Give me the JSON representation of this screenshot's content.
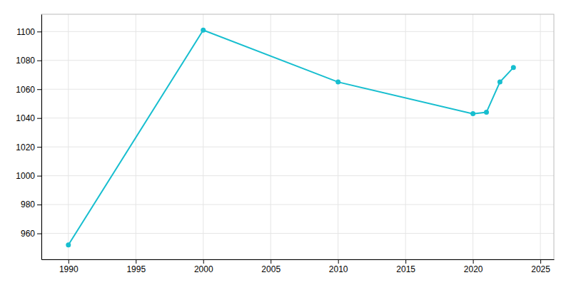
{
  "chart_data": {
    "type": "line",
    "x": [
      1990,
      2000,
      2010,
      2020,
      2021,
      2022,
      2023
    ],
    "values": [
      952,
      1101,
      1065,
      1043,
      1044,
      1065,
      1075
    ],
    "color": "#17becf",
    "marker": "circle",
    "xlim": [
      1988,
      2026
    ],
    "ylim": [
      942,
      1112
    ],
    "xticks": [
      1990,
      1995,
      2000,
      2005,
      2010,
      2015,
      2020,
      2025
    ],
    "yticks": [
      960,
      980,
      1000,
      1020,
      1040,
      1060,
      1080,
      1100
    ],
    "grid": true
  }
}
